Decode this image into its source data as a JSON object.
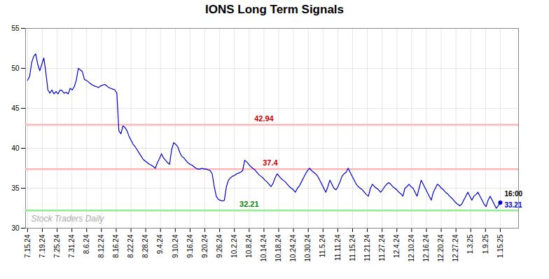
{
  "chart_data": {
    "type": "line",
    "title": "IONS Long Term Signals",
    "x": [
      0,
      1,
      2,
      3,
      4,
      5,
      6,
      7,
      8,
      9,
      10,
      11,
      12,
      13,
      14,
      15,
      16,
      17,
      18,
      19,
      20,
      21,
      22,
      23,
      24,
      25,
      26,
      27,
      28,
      29,
      30,
      31,
      32,
      33,
      34,
      35,
      36,
      37,
      38,
      39,
      40,
      41,
      42,
      43,
      44,
      45,
      46,
      47,
      48,
      49,
      50,
      51,
      52,
      53,
      54,
      55,
      56,
      57,
      58,
      59,
      60,
      61,
      62,
      63,
      64,
      65,
      66,
      67,
      68,
      69,
      70,
      71,
      72,
      73,
      74,
      75,
      76,
      77,
      78,
      79,
      80,
      81,
      82,
      83,
      84,
      85,
      86,
      87,
      88,
      89,
      90,
      91,
      92,
      93,
      94,
      95,
      96,
      97,
      98,
      99,
      100,
      101,
      102,
      103,
      104,
      105,
      106,
      107,
      108,
      109,
      110,
      111,
      112,
      113,
      114,
      115,
      116,
      117,
      118,
      119,
      120,
      121,
      122,
      123,
      124,
      125,
      126,
      127,
      128,
      129,
      130,
      131,
      132,
      133,
      134,
      135,
      136,
      137,
      138,
      139,
      140,
      141,
      142,
      143,
      144,
      145,
      146,
      147,
      148,
      149,
      150,
      151,
      152,
      153,
      154,
      155,
      156,
      157,
      158,
      159,
      160,
      161,
      162,
      163,
      164,
      165,
      166,
      167,
      168,
      169,
      170,
      171,
      172,
      173,
      174,
      175,
      176,
      177,
      178,
      179,
      180,
      181,
      182,
      183,
      184,
      185,
      186,
      187,
      188,
      189,
      190,
      191,
      192,
      193,
      194,
      195,
      196,
      197,
      198,
      199,
      200,
      201,
      202,
      203,
      204,
      205,
      206,
      207,
      208,
      209,
      210,
      211,
      212,
      213,
      214,
      215,
      216,
      217,
      218,
      219,
      220,
      221,
      222,
      223,
      224,
      225,
      226,
      227,
      228,
      229,
      230,
      231,
      232,
      233
    ],
    "values": [
      48.5,
      49.0,
      50.7,
      51.5,
      51.8,
      50.5,
      49.7,
      50.5,
      51.3,
      49.5,
      47.3,
      46.9,
      47.3,
      46.8,
      47.1,
      46.8,
      47.3,
      47.2,
      46.9,
      47.0,
      46.8,
      47.5,
      47.3,
      47.7,
      48.5,
      50.0,
      49.8,
      49.6,
      48.6,
      48.5,
      48.3,
      48.1,
      47.9,
      47.8,
      47.7,
      47.6,
      47.8,
      47.9,
      48.0,
      47.8,
      47.6,
      47.5,
      47.4,
      47.3,
      46.9,
      42.2,
      41.8,
      42.8,
      42.6,
      42.2,
      41.5,
      41.0,
      40.5,
      40.2,
      39.8,
      39.4,
      39.0,
      38.6,
      38.4,
      38.2,
      38.0,
      37.9,
      37.7,
      37.5,
      38.2,
      38.7,
      39.3,
      38.8,
      38.5,
      38.2,
      38.0,
      39.8,
      40.7,
      40.5,
      40.2,
      39.5,
      39.0,
      38.8,
      38.5,
      38.2,
      38.0,
      37.9,
      37.7,
      37.5,
      37.4,
      37.4,
      37.5,
      37.4,
      37.4,
      37.3,
      37.2,
      36.8,
      35.2,
      34.0,
      33.6,
      33.5,
      33.4,
      33.5,
      35.2,
      36.0,
      36.3,
      36.5,
      36.6,
      36.8,
      36.9,
      37.0,
      37.2,
      38.5,
      38.3,
      38.0,
      37.7,
      37.5,
      37.3,
      37.0,
      36.7,
      36.5,
      36.3,
      36.0,
      35.8,
      35.5,
      35.2,
      35.6,
      36.3,
      36.8,
      36.5,
      36.2,
      36.0,
      35.8,
      35.5,
      35.2,
      35.0,
      34.8,
      34.5,
      35.0,
      35.3,
      35.8,
      36.3,
      36.8,
      37.2,
      37.5,
      37.2,
      37.0,
      36.8,
      36.5,
      36.0,
      35.5,
      35.0,
      34.5,
      35.2,
      36.0,
      35.5,
      35.0,
      34.8,
      35.2,
      35.8,
      36.5,
      36.8,
      37.0,
      37.5,
      37.0,
      36.5,
      36.0,
      35.5,
      35.2,
      35.0,
      34.8,
      34.5,
      34.2,
      34.0,
      35.0,
      35.5,
      35.2,
      35.0,
      34.8,
      34.5,
      34.8,
      35.2,
      35.5,
      35.7,
      35.5,
      35.2,
      35.0,
      34.8,
      34.5,
      34.3,
      34.0,
      35.0,
      35.2,
      35.5,
      35.2,
      35.0,
      34.5,
      34.0,
      35.0,
      36.0,
      35.5,
      35.0,
      34.5,
      34.0,
      33.5,
      34.5,
      35.0,
      35.5,
      35.3,
      35.0,
      34.8,
      34.5,
      34.3,
      34.0,
      33.8,
      33.5,
      33.2,
      33.0,
      32.8,
      33.0,
      33.5,
      34.0,
      34.5,
      34.0,
      33.5,
      34.0,
      34.2,
      34.5,
      34.0,
      33.5,
      33.0,
      32.7,
      33.5,
      34.0,
      33.5,
      33.0,
      32.5,
      32.8,
      33.21
    ],
    "color": "#0000cc",
    "xlim": [
      -1,
      242
    ],
    "xticks": [
      {
        "value": 0,
        "label": "7.15.24"
      },
      {
        "value": 7.28125,
        "label": "7.19.24"
      },
      {
        "value": 14.5625,
        "label": "7.25.24"
      },
      {
        "value": 21.84375,
        "label": "7.31.24"
      },
      {
        "value": 29.125,
        "label": "8.6.24"
      },
      {
        "value": 36.40625,
        "label": "8.12.24"
      },
      {
        "value": 43.6875,
        "label": "8.16.24"
      },
      {
        "value": 50.96875,
        "label": "8.22.24"
      },
      {
        "value": 58.25,
        "label": "8.28.24"
      },
      {
        "value": 65.53125,
        "label": "9.4.24"
      },
      {
        "value": 72.8125,
        "label": "9.10.24"
      },
      {
        "value": 80.09375,
        "label": "9.16.24"
      },
      {
        "value": 87.375,
        "label": "9.20.24"
      },
      {
        "value": 94.65625,
        "label": "9.26.24"
      },
      {
        "value": 101.9375,
        "label": "10.2.24"
      },
      {
        "value": 109.21875,
        "label": "10.8.24"
      },
      {
        "value": 116.5,
        "label": "10.14.24"
      },
      {
        "value": 123.78125,
        "label": "10.18.24"
      },
      {
        "value": 131.0625,
        "label": "10.24.24"
      },
      {
        "value": 138.34375,
        "label": "10.30.24"
      },
      {
        "value": 145.625,
        "label": "11.5.24"
      },
      {
        "value": 152.90625,
        "label": "11.11.24"
      },
      {
        "value": 160.1875,
        "label": "11.15.24"
      },
      {
        "value": 167.46875,
        "label": "11.21.24"
      },
      {
        "value": 174.75,
        "label": "11.27.24"
      },
      {
        "value": 182.03125,
        "label": "12.4.24"
      },
      {
        "value": 189.3125,
        "label": "12.10.24"
      },
      {
        "value": 196.59375,
        "label": "12.16.24"
      },
      {
        "value": 203.875,
        "label": "12.20.24"
      },
      {
        "value": 211.15625,
        "label": "12.27.24"
      },
      {
        "value": 218.4375,
        "label": "1.3.25"
      },
      {
        "value": 225.71875,
        "label": "1.9.25"
      },
      {
        "value": 233,
        "label": "1.15.25"
      }
    ],
    "ylim": [
      30,
      55
    ],
    "yticks": [
      30,
      35,
      40,
      45,
      50,
      55
    ],
    "grid": true,
    "hlines": [
      {
        "value": 42.94,
        "label": "42.94",
        "color": "#ffb6b6",
        "label_color": "#cc0000"
      },
      {
        "value": 37.4,
        "label": "37.4",
        "color": "#ffb6b6",
        "label_color": "#cc0000"
      },
      {
        "value": 32.21,
        "label": "32.21",
        "color": "#90ee90",
        "label_color": "#008800"
      }
    ],
    "annotations": [
      {
        "text": "16:00",
        "color": "#000000"
      },
      {
        "text": "33.21",
        "color": "#0000cc"
      }
    ],
    "watermark": "Stock Traders Daily"
  }
}
